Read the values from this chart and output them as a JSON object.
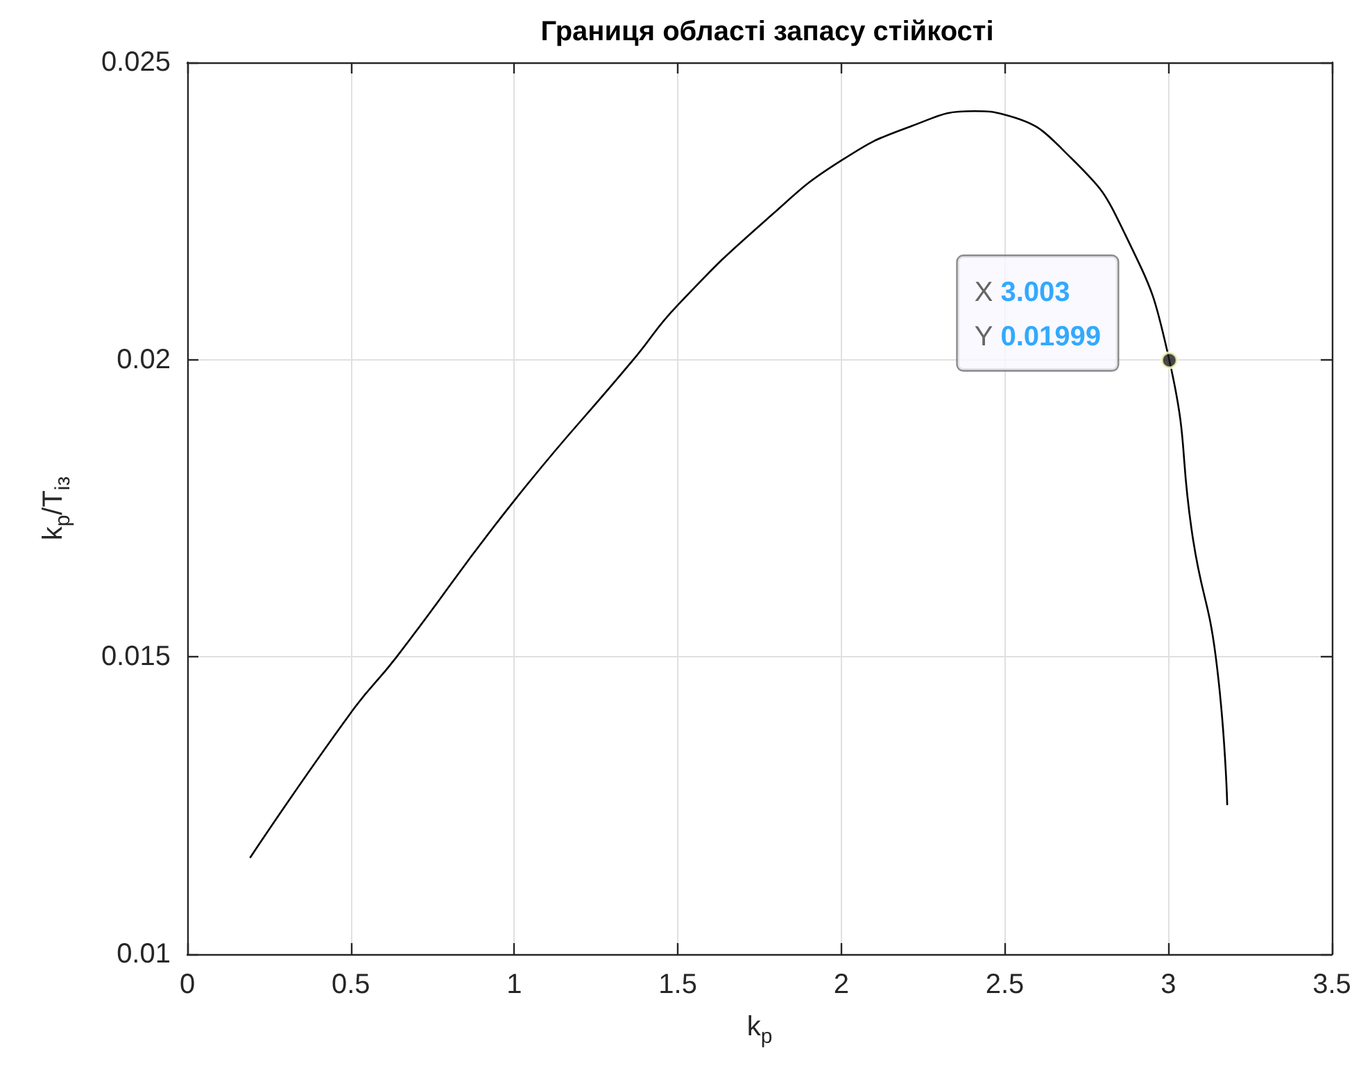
{
  "chart_data": {
    "type": "line",
    "title": "Границя області запасу стійкості",
    "xlabel": "k$_{p}$",
    "ylabel": "k$_{p}$/T$_{із}$",
    "x": [
      0.193,
      0.5,
      0.64,
      1,
      1.364,
      1.5,
      1.782,
      2,
      2.215,
      2.407,
      2.5,
      2.703,
      2.865,
      3.003,
      3.076,
      3.145,
      3.18
    ],
    "series": [
      {
        "color": "#000000",
        "values": [
          0.01163,
          0.01406,
          0.015,
          0.01763,
          0.02,
          0.02092,
          0.02241,
          0.02335,
          0.02393,
          0.02418,
          0.02412,
          0.02339,
          0.02214,
          0.01999,
          0.01696,
          0.015,
          0.01252
        ]
      }
    ],
    "xlim": [
      0,
      3.5
    ],
    "xticks": [
      0,
      0.5,
      1,
      1.5,
      2,
      2.5,
      3,
      3.5
    ],
    "ylim": [
      0.01,
      0.025
    ],
    "yticks": [
      0.01,
      0.015,
      0.02,
      0.025
    ],
    "grid": true,
    "marker": "none",
    "line_style": "solid",
    "annotations": [
      {
        "text": "X 3.003\nY 0.01999",
        "x": 3.003,
        "y": 0.01999
      }
    ]
  }
}
